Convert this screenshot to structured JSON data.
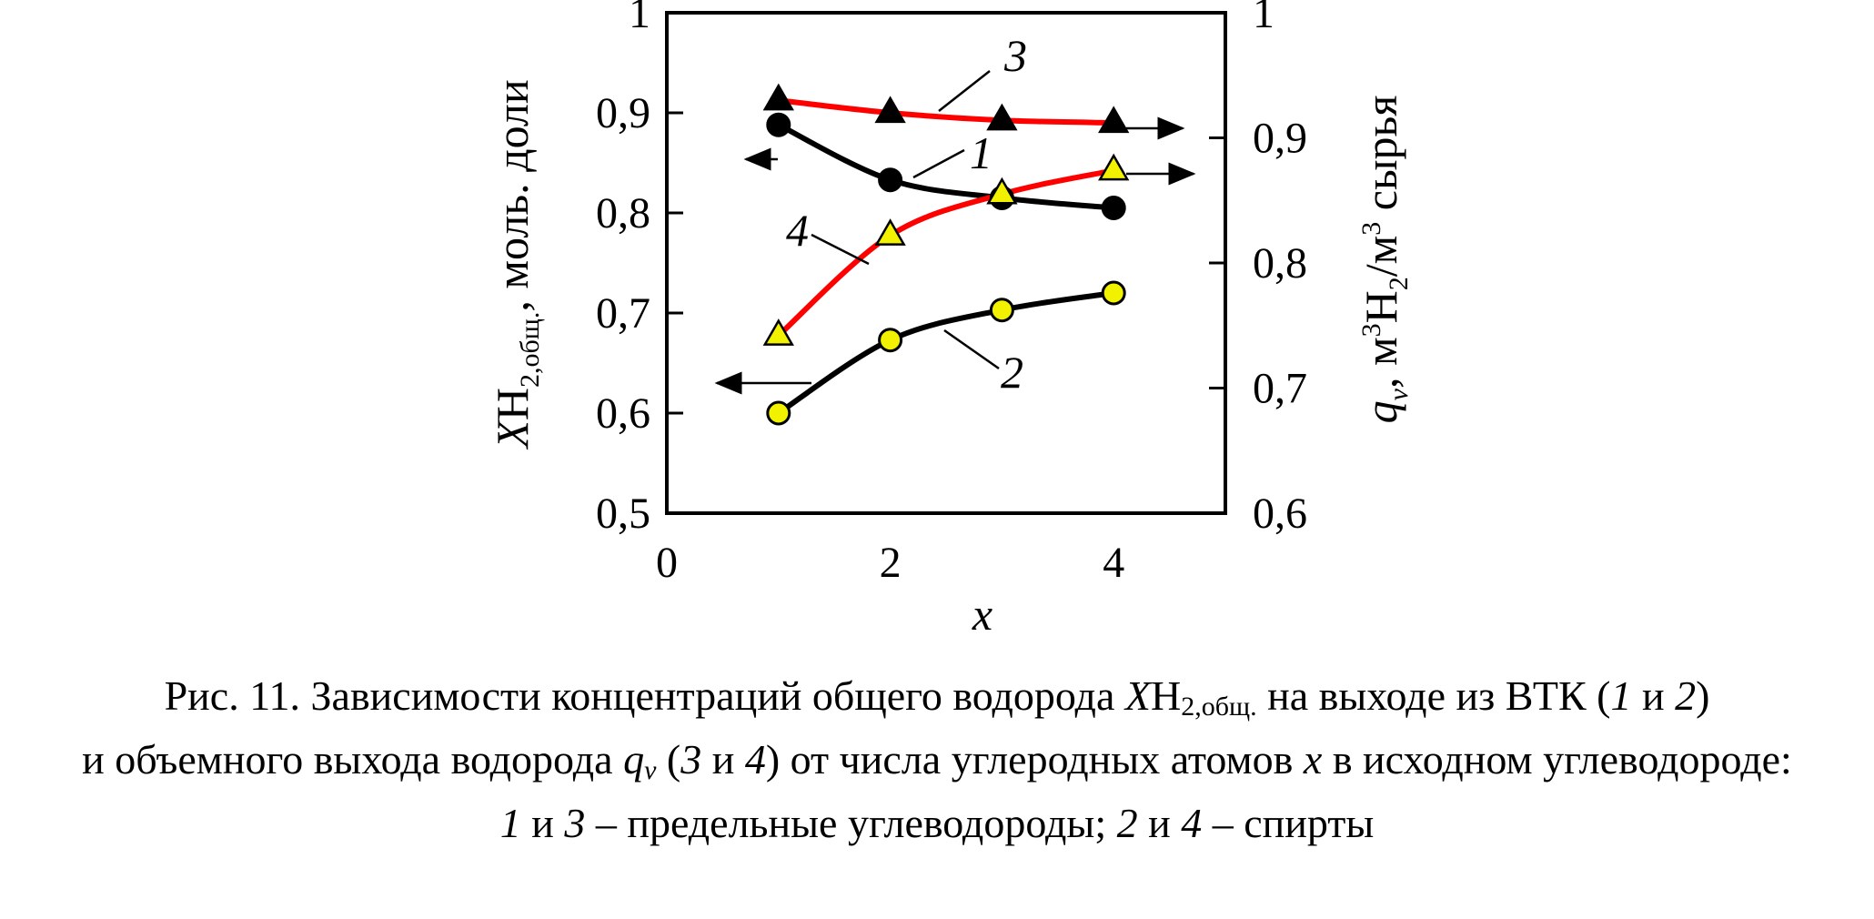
{
  "chart_data": {
    "type": "line",
    "x": [
      1,
      2,
      3,
      4
    ],
    "xlim": [
      0,
      5
    ],
    "x_ticks": [
      "0",
      "2",
      "4"
    ],
    "xlabel": "x",
    "y_left": {
      "lim": [
        0.5,
        1.0
      ],
      "ticks": [
        "0,5",
        "0,6",
        "0,7",
        "0,8",
        "0,9",
        "1"
      ],
      "label_main": "X",
      "label_sub1": "H",
      "label_sub2": "2,общ.",
      "label_rest": ", моль. доли"
    },
    "y_right": {
      "lim": [
        0.6,
        1.0
      ],
      "ticks": [
        "0,6",
        "0,7",
        "0,8",
        "0,9",
        "1"
      ],
      "label_main": "q",
      "label_sub": "v",
      "label_rest_a": ", м",
      "label_sup1": "3",
      "label_rest_b": "H",
      "label_sub2": "2",
      "label_rest_c": "/м",
      "label_sup2": "3",
      "label_rest_d": " сырья"
    },
    "grid": false,
    "series": [
      {
        "name": "1",
        "axis": "left",
        "marker": "circle",
        "marker_color": "#000000",
        "line_color": "#000000",
        "values": [
          0.888,
          0.833,
          0.815,
          0.805
        ]
      },
      {
        "name": "2",
        "axis": "left",
        "marker": "circle",
        "marker_color": "#f2f200",
        "line_color": "#000000",
        "values": [
          0.6,
          0.673,
          0.703,
          0.72
        ]
      },
      {
        "name": "3",
        "axis": "right",
        "marker": "triangle",
        "marker_color": "#000000",
        "line_color": "#ff0000",
        "values": [
          0.93,
          0.92,
          0.914,
          0.912
        ]
      },
      {
        "name": "4",
        "axis": "right",
        "marker": "triangle",
        "marker_color": "#f2f200",
        "line_color": "#ff0000",
        "values": [
          0.742,
          0.822,
          0.855,
          0.874
        ]
      }
    ]
  },
  "caption": {
    "line1_a": "Рис. 11. Зависимости концентраций общего водорода ",
    "line1_x": "X",
    "line1_b": "H",
    "line1_sub": "2,общ.",
    "line1_c": " на выходе из ВТК (",
    "line1_n1": "1",
    "line1_d": " и ",
    "line1_n2": "2",
    "line1_e": ")",
    "line2_a": "и объемного выхода водорода ",
    "line2_q": "q",
    "line2_v": "v",
    "line2_b": " (",
    "line2_n3": "3",
    "line2_c": " и ",
    "line2_n4": "4",
    "line2_d": ") от числа углеродных атомов ",
    "line2_x": "x",
    "line2_e": " в исходном углеводороде:",
    "line3_n1": "1",
    "line3_a": " и ",
    "line3_n3": "3",
    "line3_b": " – предельные углеводороды; ",
    "line3_n2": "2",
    "line3_c": " и ",
    "line3_n4": "4",
    "line3_d": " – спирты"
  }
}
